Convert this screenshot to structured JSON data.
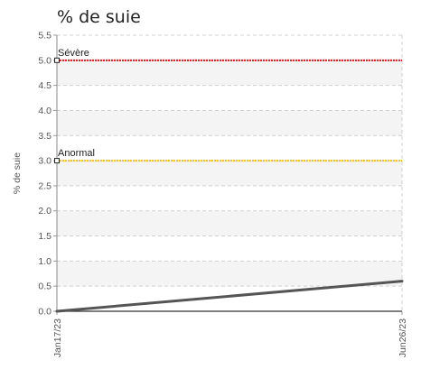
{
  "chart_data": {
    "type": "line",
    "title": "% de suie",
    "ylabel": "% de suie",
    "xlabel": "",
    "ylim": [
      0,
      5.5
    ],
    "yticks": [
      "0.0",
      "0.5",
      "1.0",
      "1.5",
      "2.0",
      "2.5",
      "3.0",
      "3.5",
      "4.0",
      "4.5",
      "5.0",
      "5.5"
    ],
    "x": [
      "Jan17/23",
      "Jun26/23"
    ],
    "series": [
      {
        "values": [
          0.0,
          0.6
        ],
        "color": "#555555"
      }
    ],
    "thresholds": [
      {
        "label": "Sévère",
        "value": 5.0,
        "color": "#e8141b"
      },
      {
        "label": "Anormal",
        "value": 3.0,
        "color": "#f2c01e"
      }
    ],
    "grid": true,
    "legend": "none"
  }
}
